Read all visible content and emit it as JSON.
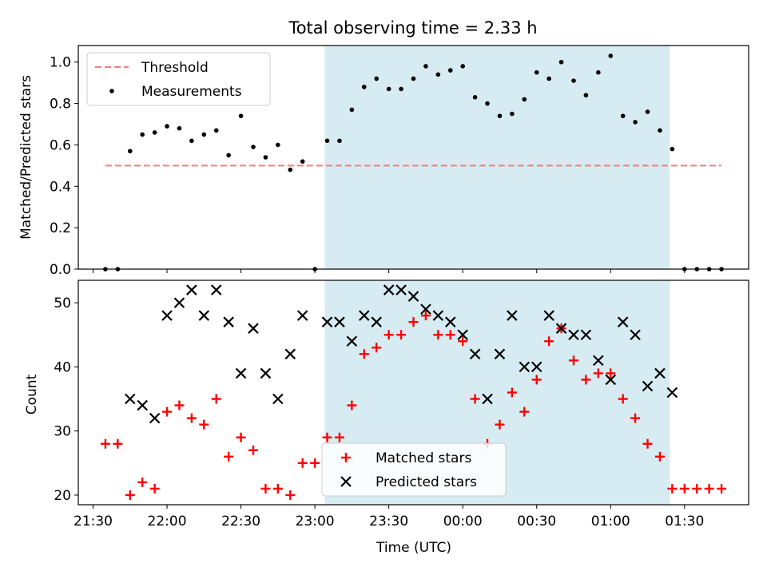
{
  "chart_data": [
    {
      "type": "scatter",
      "title": "Total observing time = 2.33 h",
      "ylabel": "Matched/Predicted stars",
      "xlabel": "",
      "ylim": [
        0,
        1.08
      ],
      "yticks": [
        "0.0",
        "0.2",
        "0.4",
        "0.6",
        "0.8",
        "1.0"
      ],
      "shaded_region": {
        "x_start": "23:04",
        "x_end": "01:24",
        "color": "#add8e6"
      },
      "threshold": {
        "label": "Threshold",
        "value": 0.5,
        "x_start": "21:35",
        "x_end": "01:45",
        "color": "#f08080",
        "style": "dashed"
      },
      "legend": {
        "placement": "upper-left",
        "entries": [
          "Threshold",
          "Measurements"
        ]
      },
      "series": [
        {
          "name": "Measurements",
          "marker": "dot",
          "color": "#000000",
          "points": [
            [
              "21:35",
              0.0
            ],
            [
              "21:40",
              0.0
            ],
            [
              "21:45",
              0.57
            ],
            [
              "21:50",
              0.65
            ],
            [
              "21:55",
              0.66
            ],
            [
              "22:00",
              0.69
            ],
            [
              "22:05",
              0.68
            ],
            [
              "22:10",
              0.62
            ],
            [
              "22:15",
              0.65
            ],
            [
              "22:20",
              0.67
            ],
            [
              "22:25",
              0.55
            ],
            [
              "22:30",
              0.74
            ],
            [
              "22:35",
              0.59
            ],
            [
              "22:40",
              0.54
            ],
            [
              "22:45",
              0.6
            ],
            [
              "22:50",
              0.48
            ],
            [
              "22:55",
              0.52
            ],
            [
              "23:00",
              0.0
            ],
            [
              "23:05",
              0.62
            ],
            [
              "23:10",
              0.62
            ],
            [
              "23:15",
              0.77
            ],
            [
              "23:20",
              0.88
            ],
            [
              "23:25",
              0.92
            ],
            [
              "23:30",
              0.87
            ],
            [
              "23:35",
              0.87
            ],
            [
              "23:40",
              0.92
            ],
            [
              "23:45",
              0.98
            ],
            [
              "23:50",
              0.94
            ],
            [
              "23:55",
              0.96
            ],
            [
              "00:00",
              0.98
            ],
            [
              "00:05",
              0.83
            ],
            [
              "00:10",
              0.8
            ],
            [
              "00:15",
              0.74
            ],
            [
              "00:20",
              0.75
            ],
            [
              "00:25",
              0.82
            ],
            [
              "00:30",
              0.95
            ],
            [
              "00:35",
              0.92
            ],
            [
              "00:40",
              1.0
            ],
            [
              "00:45",
              0.91
            ],
            [
              "00:50",
              0.84
            ],
            [
              "00:55",
              0.95
            ],
            [
              "01:00",
              1.03
            ],
            [
              "01:05",
              0.74
            ],
            [
              "01:10",
              0.71
            ],
            [
              "01:15",
              0.76
            ],
            [
              "01:20",
              0.67
            ],
            [
              "01:25",
              0.58
            ],
            [
              "01:30",
              0.0
            ],
            [
              "01:35",
              0.0
            ],
            [
              "01:40",
              0.0
            ],
            [
              "01:45",
              0.0
            ]
          ]
        }
      ]
    },
    {
      "type": "scatter",
      "title": "",
      "xlabel": "Time (UTC)",
      "ylabel": "Count",
      "ylim": [
        18.5,
        53.5
      ],
      "yticks": [
        "20",
        "30",
        "40",
        "50"
      ],
      "xlim": [
        "21:24",
        "01:56"
      ],
      "xticks": [
        "21:30",
        "22:00",
        "22:30",
        "23:00",
        "23:30",
        "00:00",
        "00:30",
        "01:00",
        "01:30"
      ],
      "shaded_region": {
        "x_start": "23:04",
        "x_end": "01:24",
        "color": "#add8e6"
      },
      "legend": {
        "placement": "lower-center",
        "entries": [
          "Matched stars",
          "Predicted stars"
        ]
      },
      "series": [
        {
          "name": "Matched stars",
          "marker": "plus",
          "color": "#ff0000",
          "points": [
            [
              "21:35",
              28
            ],
            [
              "21:40",
              28
            ],
            [
              "21:45",
              20
            ],
            [
              "21:50",
              22
            ],
            [
              "21:55",
              21
            ],
            [
              "22:00",
              33
            ],
            [
              "22:05",
              34
            ],
            [
              "22:10",
              32
            ],
            [
              "22:15",
              31
            ],
            [
              "22:20",
              35
            ],
            [
              "22:25",
              26
            ],
            [
              "22:30",
              29
            ],
            [
              "22:35",
              27
            ],
            [
              "22:40",
              21
            ],
            [
              "22:45",
              21
            ],
            [
              "22:50",
              20
            ],
            [
              "22:55",
              25
            ],
            [
              "23:00",
              25
            ],
            [
              "23:05",
              29
            ],
            [
              "23:10",
              29
            ],
            [
              "23:15",
              34
            ],
            [
              "23:20",
              42
            ],
            [
              "23:25",
              43
            ],
            [
              "23:30",
              45
            ],
            [
              "23:35",
              45
            ],
            [
              "23:40",
              47
            ],
            [
              "23:45",
              48
            ],
            [
              "23:50",
              45
            ],
            [
              "23:55",
              45
            ],
            [
              "00:00",
              44
            ],
            [
              "00:05",
              35
            ],
            [
              "00:10",
              28
            ],
            [
              "00:15",
              31
            ],
            [
              "00:20",
              36
            ],
            [
              "00:25",
              33
            ],
            [
              "00:30",
              38
            ],
            [
              "00:35",
              44
            ],
            [
              "00:40",
              46
            ],
            [
              "00:45",
              41
            ],
            [
              "00:50",
              38
            ],
            [
              "00:55",
              39
            ],
            [
              "01:00",
              39
            ],
            [
              "01:05",
              35
            ],
            [
              "01:10",
              32
            ],
            [
              "01:15",
              28
            ],
            [
              "01:20",
              26
            ],
            [
              "01:25",
              21
            ],
            [
              "01:30",
              21
            ],
            [
              "01:35",
              21
            ],
            [
              "01:40",
              21
            ],
            [
              "01:45",
              21
            ]
          ]
        },
        {
          "name": "Predicted stars",
          "marker": "x",
          "color": "#000000",
          "points": [
            [
              "21:45",
              35
            ],
            [
              "21:50",
              34
            ],
            [
              "21:55",
              32
            ],
            [
              "22:00",
              48
            ],
            [
              "22:05",
              50
            ],
            [
              "22:10",
              52
            ],
            [
              "22:15",
              48
            ],
            [
              "22:20",
              52
            ],
            [
              "22:25",
              47
            ],
            [
              "22:30",
              39
            ],
            [
              "22:35",
              46
            ],
            [
              "22:40",
              39
            ],
            [
              "22:45",
              35
            ],
            [
              "22:50",
              42
            ],
            [
              "22:55",
              48
            ],
            [
              "23:05",
              47
            ],
            [
              "23:10",
              47
            ],
            [
              "23:15",
              44
            ],
            [
              "23:20",
              48
            ],
            [
              "23:25",
              47
            ],
            [
              "23:30",
              52
            ],
            [
              "23:35",
              52
            ],
            [
              "23:40",
              51
            ],
            [
              "23:45",
              49
            ],
            [
              "23:50",
              48
            ],
            [
              "23:55",
              47
            ],
            [
              "00:00",
              45
            ],
            [
              "00:05",
              42
            ],
            [
              "00:10",
              35
            ],
            [
              "00:15",
              42
            ],
            [
              "00:20",
              48
            ],
            [
              "00:25",
              40
            ],
            [
              "00:30",
              40
            ],
            [
              "00:35",
              48
            ],
            [
              "00:40",
              46
            ],
            [
              "00:45",
              45
            ],
            [
              "00:50",
              45
            ],
            [
              "00:55",
              41
            ],
            [
              "01:00",
              38
            ],
            [
              "01:05",
              47
            ],
            [
              "01:10",
              45
            ],
            [
              "01:15",
              37
            ],
            [
              "01:20",
              39
            ],
            [
              "01:25",
              36
            ]
          ]
        }
      ]
    }
  ]
}
